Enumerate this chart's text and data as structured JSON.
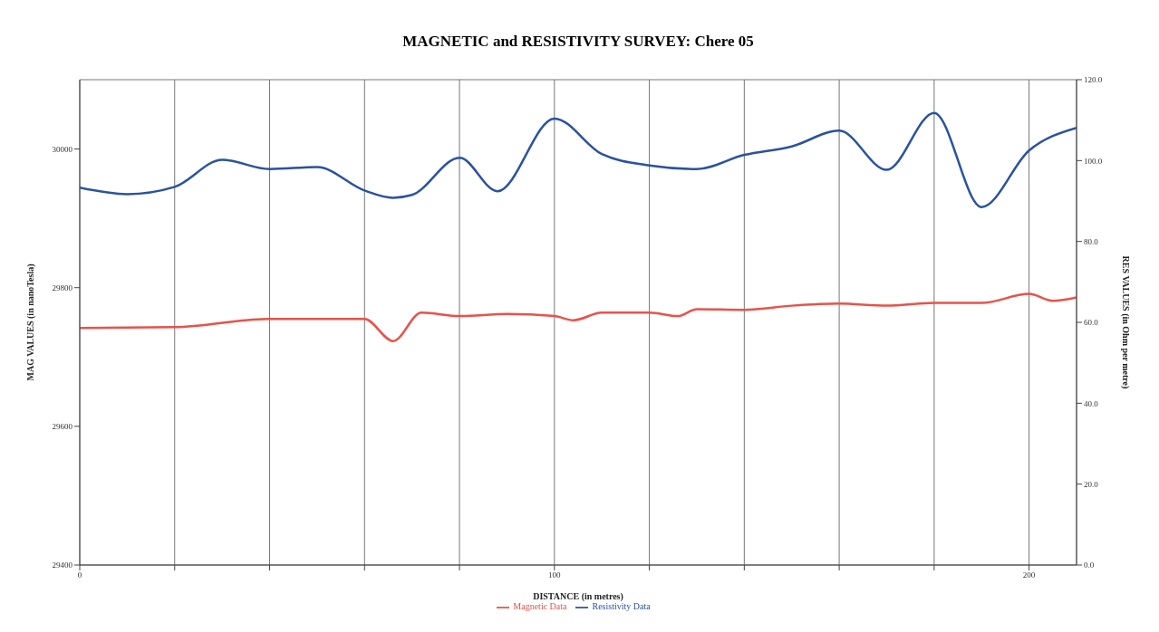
{
  "chart_data": {
    "type": "line",
    "title": "MAGNETIC and RESISTIVITY SURVEY: Chere 05",
    "xlabel": "DISTANCE (in metres)",
    "ylabel": "MAG VALUES (in nanoTesla)",
    "y2label": "RES VALUES (in Ohm per metre)",
    "xlim": [
      0,
      210
    ],
    "xticks": [
      0,
      {
        "value": 20,
        "label": null
      },
      {
        "value": 40,
        "label": null
      },
      {
        "value": 60,
        "label": null
      },
      {
        "value": 80,
        "label": null
      },
      100,
      {
        "value": 120,
        "label": null
      },
      {
        "value": 140,
        "label": null
      },
      {
        "value": 160,
        "label": null
      },
      {
        "value": 180,
        "label": null
      },
      200
    ],
    "ylim": [
      29400,
      30100
    ],
    "yticks": [
      29400,
      29600,
      29800,
      30000
    ],
    "y2lim": [
      0,
      120
    ],
    "y2ticks": [
      {
        "value": 0,
        "label": "0.0"
      },
      {
        "value": 20,
        "label": "20.0"
      },
      {
        "value": 40,
        "label": "40.0"
      },
      {
        "value": 60,
        "label": "60.0"
      },
      {
        "value": 80,
        "label": "80.0"
      },
      {
        "value": 100,
        "label": "100.0"
      },
      {
        "value": 120,
        "label": "120.0"
      }
    ],
    "grid": true,
    "legend": "bottom",
    "marker": "none",
    "line_style": "solid",
    "series": [
      {
        "name": "Magnetic Data",
        "color": "#e8524a",
        "x": [
          0,
          20,
          40,
          60,
          66,
          72,
          80,
          90,
          100,
          104,
          110,
          120,
          126,
          130,
          140,
          150,
          160,
          170,
          180,
          190,
          200,
          205,
          210
        ],
        "values": [
          29742,
          29743,
          29755,
          29755,
          29723,
          29764,
          29759,
          29762,
          29759,
          29753,
          29764,
          29764,
          29759,
          29769,
          29768,
          29774,
          29777,
          29774,
          29778,
          29778,
          29791,
          29781,
          29786
        ]
      },
      {
        "name": "Resistivity Data",
        "color": "#2a52a0",
        "axis": "y2",
        "x": [
          0,
          10,
          20,
          30,
          40,
          50,
          60,
          66,
          70,
          80,
          88,
          100,
          110,
          120,
          130,
          140,
          150,
          160,
          170,
          180,
          190,
          200,
          210
        ],
        "values": [
          93.3,
          91.7,
          93.5,
          100.2,
          97.9,
          98.4,
          92.6,
          90.8,
          91.5,
          100.7,
          92.4,
          110.4,
          101.6,
          98.8,
          97.9,
          101.4,
          103.5,
          107.4,
          97.7,
          111.8,
          88.5,
          102.5,
          108.1
        ]
      }
    ]
  }
}
